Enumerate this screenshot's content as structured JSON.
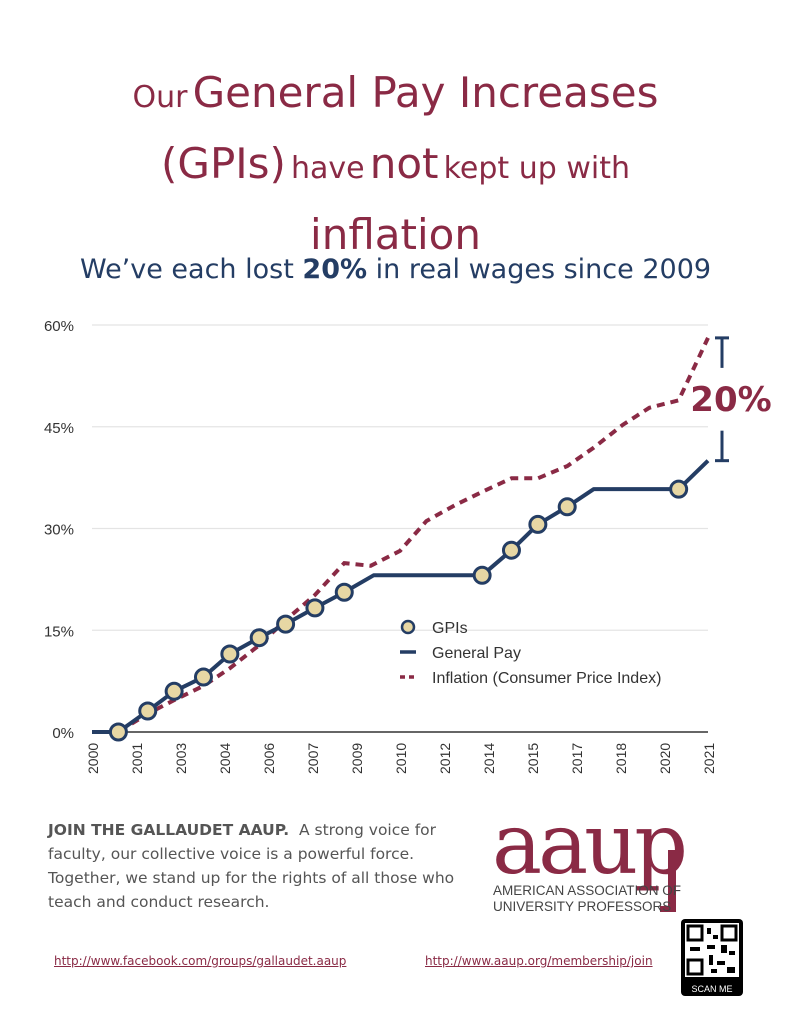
{
  "title": {
    "part1": "Our",
    "part2": "General Pay Increases",
    "part3": "(GPIs)",
    "part4": "have",
    "part5": "not",
    "part6": "kept up with",
    "part7": "inflation"
  },
  "subtitle": {
    "pre": "We’ve each lost",
    "bold": "20%",
    "post": "in real wages since 2009"
  },
  "chart_data": {
    "type": "line",
    "ylabel": "",
    "xlabel": "",
    "ylim": [
      0,
      60
    ],
    "xlim": [
      2000,
      2021
    ],
    "yticks": [
      "0%",
      "15%",
      "30%",
      "45%",
      "60%"
    ],
    "ytick_values": [
      0,
      15,
      30,
      45,
      60
    ],
    "xtick_labels": [
      "2000",
      "2001",
      "2003",
      "2004",
      "2006",
      "2007",
      "2009",
      "2010",
      "2012",
      "2014",
      "2015",
      "2017",
      "2018",
      "2020",
      "2021"
    ],
    "grid": true,
    "legend": {
      "placement": "center-right",
      "entries": [
        "GPIs",
        "General Pay",
        "Inflation (Consumer Price Index)"
      ]
    },
    "annotation": "20%",
    "series": [
      {
        "name": "General Pay",
        "color": "#243d64",
        "style": "solid",
        "x": [
          2000,
          2000.9,
          2001.9,
          2002.8,
          2003.8,
          2004.7,
          2005.7,
          2006.6,
          2007.6,
          2008.6,
          2009.6,
          2013.3,
          2014.3,
          2015.2,
          2016.2,
          2017.1,
          2020.0,
          2021
        ],
        "y": [
          0,
          0,
          3.1,
          6.0,
          8.1,
          11.5,
          13.9,
          15.9,
          18.3,
          20.6,
          23.1,
          23.1,
          26.8,
          30.6,
          33.2,
          35.8,
          35.8,
          40.0
        ]
      },
      {
        "name": "GPIs",
        "color": "#e7d7a4",
        "style": "marker",
        "x": [
          2000.9,
          2001.9,
          2002.8,
          2003.8,
          2004.7,
          2005.7,
          2006.6,
          2007.6,
          2008.6,
          2013.3,
          2014.3,
          2015.2,
          2016.2,
          2020.0
        ],
        "y": [
          0,
          3.1,
          6.0,
          8.1,
          11.5,
          13.9,
          15.9,
          18.3,
          20.6,
          23.1,
          26.8,
          30.6,
          33.2,
          35.8
        ]
      },
      {
        "name": "Inflation (Consumer Price Index)",
        "color": "#8a2a45",
        "style": "dashed",
        "x": [
          2000,
          2000.9,
          2001.9,
          2002.8,
          2003.8,
          2004.7,
          2005.7,
          2006.6,
          2007.6,
          2008.6,
          2009.5,
          2010.5,
          2011.4,
          2012.4,
          2013.3,
          2014.3,
          2015.2,
          2016.2,
          2017.1,
          2018.1,
          2019.0,
          2020.0,
          2021
        ],
        "y": [
          0,
          0,
          2.7,
          4.7,
          6.8,
          9.4,
          12.8,
          16.5,
          20.2,
          24.9,
          24.5,
          26.7,
          31.1,
          33.5,
          35.4,
          37.4,
          37.4,
          39.2,
          41.9,
          45.3,
          47.8,
          48.9,
          58.1
        ]
      }
    ]
  },
  "footer": {
    "join_bold": "JOIN THE GALLAUDET AAUP.",
    "join_text": "A strong voice for faculty, our collective voice is a powerful force. Together, we stand up for the rights of all those who teach and conduct research.",
    "facebook_link": "http://www.facebook.com/groups/gallaudet.aaup",
    "aaup_link": "http://www.aaup.org/membership/join",
    "logo_text": "aaup",
    "logo_sub1": "AMERICAN ASSOCIATION OF",
    "logo_sub2": "UNIVERSITY PROFESSORS",
    "qr_label": "SCAN ME"
  }
}
